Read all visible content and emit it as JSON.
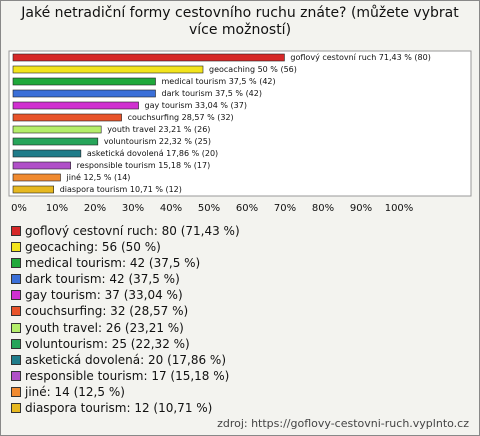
{
  "chart_data": {
    "type": "bar",
    "orientation": "horizontal",
    "title": "Jaké netradiční formy cestovního ruchu znáte? (můžete vybrat více možností)",
    "categories": [
      "goflový cestovní ruch",
      "geocaching",
      "medical tourism",
      "dark tourism",
      "gay tourism",
      "couchsurfing",
      "youth travel",
      "voluntourism",
      "asketická dovolená",
      "responsible tourism",
      "jiné",
      "diaspora tourism"
    ],
    "values": [
      71.43,
      50,
      37.5,
      37.5,
      33.04,
      28.57,
      23.21,
      22.32,
      17.86,
      15.18,
      12.5,
      10.71
    ],
    "value_labels": [
      "goflový cestovní ruch 71,43 % (80)",
      "geocaching 50 % (56)",
      "medical tourism 37,5 % (42)",
      "dark tourism 37,5 % (42)",
      "gay tourism 33,04 % (37)",
      "couchsurfing 28,57 % (32)",
      "youth travel 23,21 % (26)",
      "voluntourism 22,32 % (25)",
      "asketická dovolená 17,86 % (20)",
      "responsible tourism 15,18 % (17)",
      "jiné 12,5 % (14)",
      "diaspora tourism 10,71 % (12)"
    ],
    "legend_labels": [
      "goflový cestovní ruch: 80 (71,43 %)",
      "geocaching: 56 (50 %)",
      "medical tourism: 42 (37,5 %)",
      "dark tourism: 42 (37,5 %)",
      "gay tourism: 37 (33,04 %)",
      "couchsurfing: 32 (28,57 %)",
      "youth travel: 26 (23,21 %)",
      "voluntourism: 25 (22,32 %)",
      "asketická dovolená: 20 (17,86 %)",
      "responsible tourism: 17 (15,18 %)",
      "jiné: 14 (12,5 %)",
      "diaspora tourism: 12 (10,71 %)"
    ],
    "colors": [
      "#d62828",
      "#f2e41c",
      "#1fa83a",
      "#3a6fd8",
      "#d030d0",
      "#e8532a",
      "#b4ee6a",
      "#27a55a",
      "#1f7c8a",
      "#b050c8",
      "#f08a30",
      "#e6b820"
    ],
    "xlim": [
      0,
      100
    ],
    "xticks": [
      {
        "value": 0,
        "label": "0%"
      },
      {
        "value": 10,
        "label": "10%"
      },
      {
        "value": 20,
        "label": "20%"
      },
      {
        "value": 30,
        "label": "30%"
      },
      {
        "value": 40,
        "label": "40%"
      },
      {
        "value": 50,
        "label": "50%"
      },
      {
        "value": 60,
        "label": "60%"
      },
      {
        "value": 70,
        "label": "70%"
      },
      {
        "value": 80,
        "label": "80%"
      },
      {
        "value": 90,
        "label": "90%"
      },
      {
        "value": 100,
        "label": "100%"
      }
    ],
    "source": "zdroj: https://goflovy-cestovni-ruch.vyplnto.cz"
  }
}
